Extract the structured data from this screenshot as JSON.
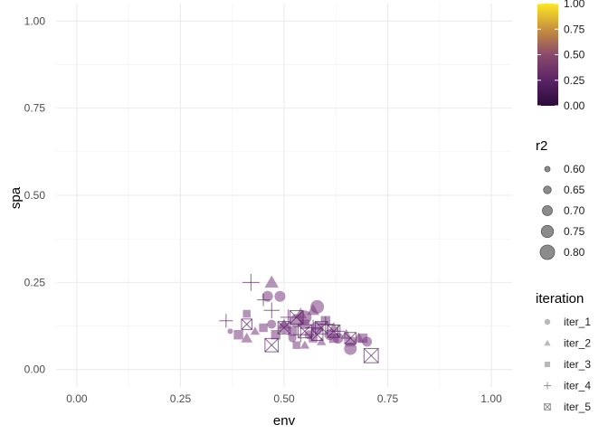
{
  "chart_data": {
    "type": "scatter",
    "xlabel": "env",
    "ylabel": "spa",
    "xlim": [
      -0.05,
      1.05
    ],
    "ylim": [
      -0.05,
      1.05
    ],
    "x_ticks": [
      0.0,
      0.25,
      0.5,
      0.75,
      1.0
    ],
    "x_tick_labels": [
      "0.00",
      "0.25",
      "0.50",
      "0.75",
      "1.00"
    ],
    "y_ticks": [
      0.0,
      0.25,
      0.5,
      0.75,
      1.0
    ],
    "y_tick_labels": [
      "0.00",
      "0.25",
      "0.50",
      "0.75",
      "1.00"
    ],
    "grid": true,
    "color_legend": {
      "title": "",
      "ticks": [
        0.0,
        0.25,
        0.5,
        0.75,
        1.0
      ],
      "tick_labels": [
        "0.00",
        "0.25",
        "0.50",
        "0.75",
        "1.00"
      ],
      "palette": [
        "#440154",
        "#3b528b",
        "#21918c",
        "#5ec962",
        "#fde725"
      ],
      "note_colors": [
        "#2a0b3a",
        "#6a2a6a",
        "#b05a5a",
        "#d8a040",
        "#fde725"
      ]
    },
    "size_legend": {
      "title": "r2",
      "values": [
        0.6,
        0.65,
        0.7,
        0.75,
        0.8
      ],
      "labels": [
        "0.60",
        "0.65",
        "0.70",
        "0.75",
        "0.80"
      ]
    },
    "shape_legend": {
      "title": "iteration",
      "labels": [
        "iter_1",
        "iter_2",
        "iter_3",
        "iter_4",
        "iter_5"
      ],
      "shapes": [
        "circle",
        "triangle",
        "square",
        "plus",
        "boxcross"
      ]
    },
    "series": [
      {
        "name": "iter_1",
        "points": [
          [
            0.37,
            0.11,
            0.6
          ],
          [
            0.46,
            0.21,
            0.72
          ],
          [
            0.49,
            0.21,
            0.72
          ],
          [
            0.47,
            0.13,
            0.68
          ],
          [
            0.5,
            0.12,
            0.74
          ],
          [
            0.53,
            0.14,
            0.78
          ],
          [
            0.55,
            0.15,
            0.78
          ],
          [
            0.58,
            0.18,
            0.78
          ],
          [
            0.58,
            0.12,
            0.76
          ],
          [
            0.61,
            0.1,
            0.72
          ],
          [
            0.63,
            0.09,
            0.72
          ],
          [
            0.66,
            0.06,
            0.76
          ],
          [
            0.7,
            0.08,
            0.7
          ],
          [
            0.52,
            0.09,
            0.66
          ],
          [
            0.56,
            0.1,
            0.68
          ]
        ]
      },
      {
        "name": "iter_2",
        "points": [
          [
            0.41,
            0.09,
            0.7
          ],
          [
            0.43,
            0.11,
            0.66
          ],
          [
            0.47,
            0.25,
            0.75
          ],
          [
            0.5,
            0.13,
            0.7
          ],
          [
            0.54,
            0.16,
            0.72
          ],
          [
            0.57,
            0.17,
            0.72
          ],
          [
            0.62,
            0.12,
            0.7
          ],
          [
            0.65,
            0.1,
            0.7
          ],
          [
            0.68,
            0.09,
            0.7
          ],
          [
            0.55,
            0.07,
            0.66
          ],
          [
            0.59,
            0.08,
            0.66
          ]
        ]
      },
      {
        "name": "iter_3",
        "points": [
          [
            0.39,
            0.1,
            0.7
          ],
          [
            0.41,
            0.16,
            0.66
          ],
          [
            0.45,
            0.12,
            0.68
          ],
          [
            0.48,
            0.1,
            0.7
          ],
          [
            0.52,
            0.11,
            0.7
          ],
          [
            0.55,
            0.13,
            0.7
          ],
          [
            0.57,
            0.09,
            0.68
          ],
          [
            0.6,
            0.14,
            0.7
          ],
          [
            0.62,
            0.09,
            0.7
          ],
          [
            0.66,
            0.08,
            0.7
          ],
          [
            0.69,
            0.09,
            0.7
          ],
          [
            0.53,
            0.07,
            0.66
          ]
        ]
      },
      {
        "name": "iter_4",
        "points": [
          [
            0.36,
            0.14,
            0.72
          ],
          [
            0.42,
            0.25,
            0.78
          ],
          [
            0.47,
            0.17,
            0.76
          ],
          [
            0.51,
            0.15,
            0.76
          ],
          [
            0.54,
            0.1,
            0.74
          ],
          [
            0.57,
            0.12,
            0.76
          ],
          [
            0.6,
            0.13,
            0.76
          ],
          [
            0.63,
            0.11,
            0.72
          ],
          [
            0.45,
            0.2,
            0.7
          ]
        ]
      },
      {
        "name": "iter_5",
        "points": [
          [
            0.41,
            0.13,
            0.7
          ],
          [
            0.47,
            0.07,
            0.76
          ],
          [
            0.5,
            0.12,
            0.74
          ],
          [
            0.53,
            0.15,
            0.76
          ],
          [
            0.55,
            0.11,
            0.76
          ],
          [
            0.59,
            0.12,
            0.74
          ],
          [
            0.62,
            0.11,
            0.74
          ],
          [
            0.66,
            0.09,
            0.72
          ],
          [
            0.71,
            0.04,
            0.78
          ],
          [
            0.58,
            0.1,
            0.72
          ]
        ]
      }
    ]
  }
}
